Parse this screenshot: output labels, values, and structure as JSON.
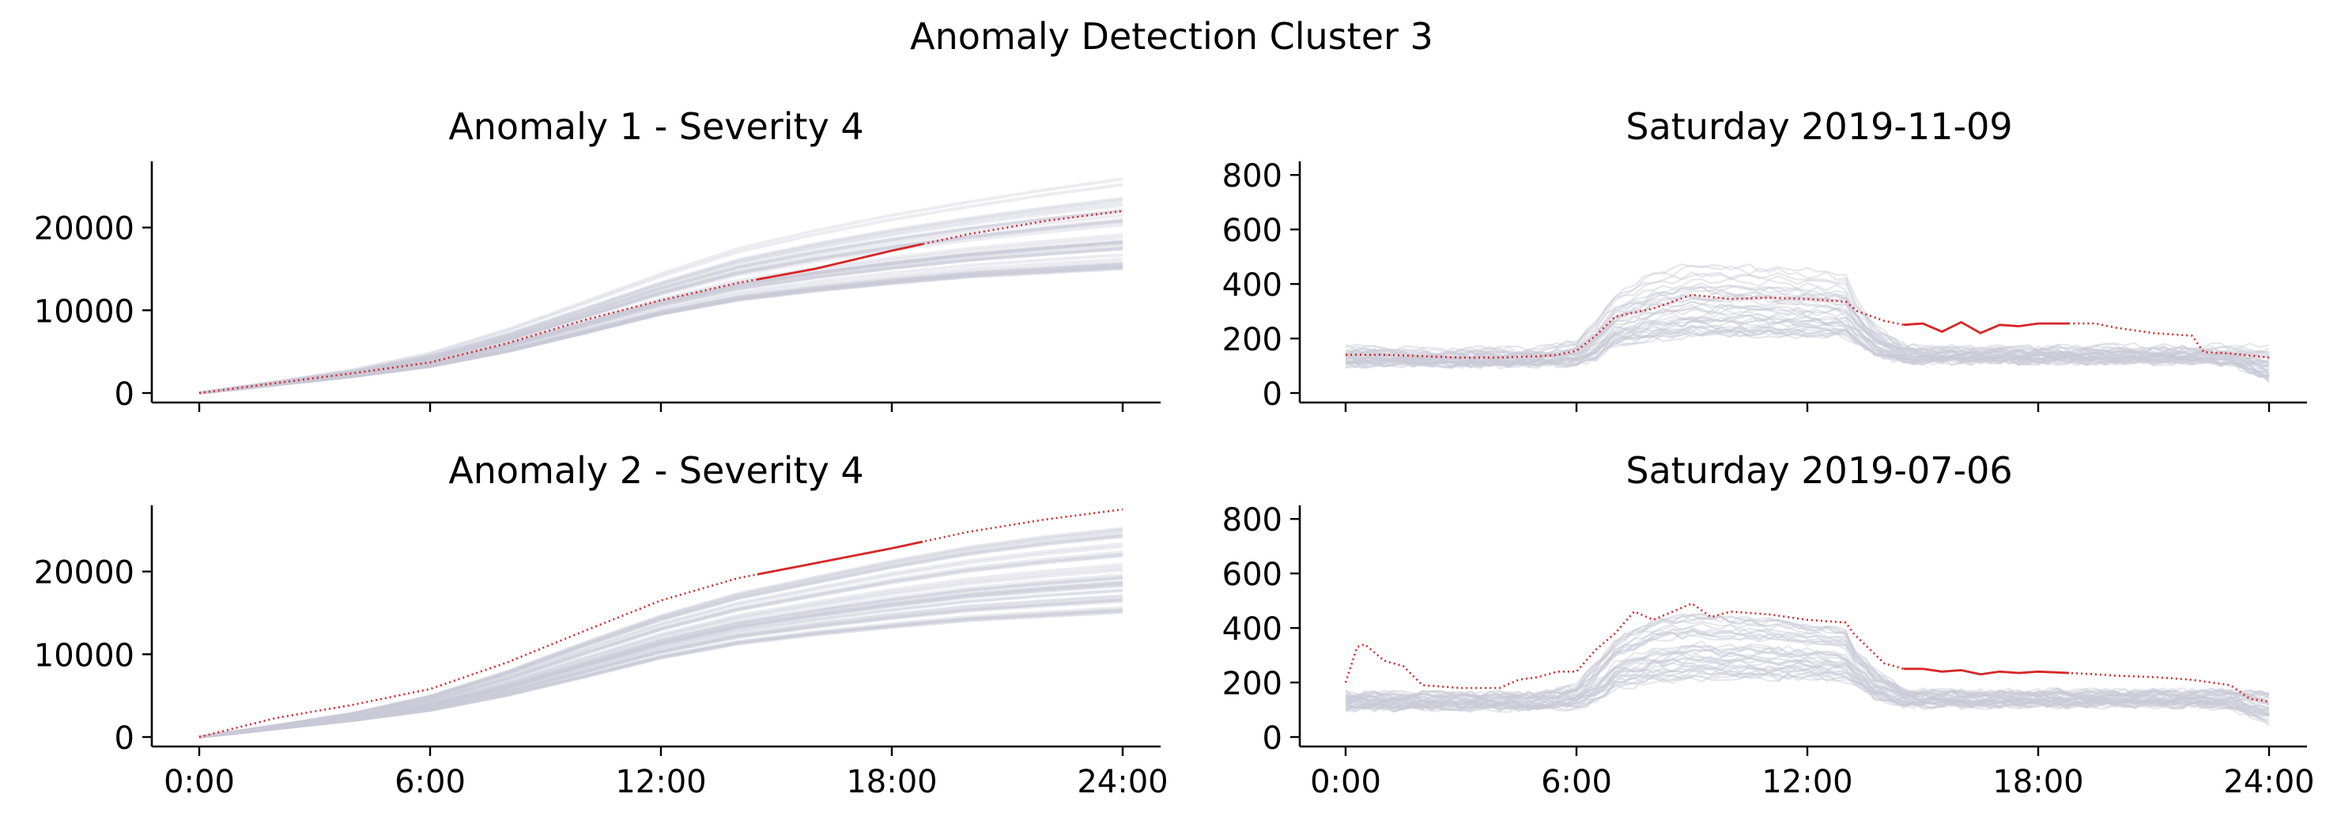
{
  "figure": {
    "suptitle": "Anomaly Detection Cluster 3"
  },
  "colors": {
    "background": "#ffffff",
    "background_lines": "#c9c9d6",
    "anomaly": "#d62728",
    "axes": "#000000"
  },
  "chart_data": [
    {
      "type": "line",
      "title": "Anomaly 1 - Severity 4",
      "xlabel": "",
      "ylabel": "",
      "xlim": [
        0,
        24
      ],
      "ylim": [
        0,
        28000
      ],
      "xticks": [
        "0:00",
        "6:00",
        "12:00",
        "18:00",
        "24:00"
      ],
      "yticks": [
        0,
        10000,
        20000
      ],
      "grid": false,
      "legend": "none",
      "background_series": {
        "count": 40,
        "x": [
          0,
          2,
          4,
          6,
          8,
          10,
          12,
          14,
          16,
          18,
          20,
          22,
          24
        ],
        "low": [
          0,
          1000,
          2000,
          3200,
          5000,
          7200,
          9500,
          11200,
          12300,
          13200,
          14000,
          14500,
          15000
        ],
        "high": [
          0,
          1400,
          2900,
          5000,
          8000,
          11500,
          15000,
          18200,
          20500,
          22500,
          24200,
          25800,
          27200
        ]
      },
      "anomaly_series": {
        "x": [
          0,
          2,
          4,
          6,
          8,
          10,
          12,
          14,
          16,
          18,
          20,
          22,
          24
        ],
        "y": [
          0,
          1200,
          2400,
          3700,
          6000,
          8800,
          11200,
          13300,
          15000,
          17200,
          19200,
          20800,
          22000
        ],
        "highlight_range": [
          14.5,
          18.8
        ]
      }
    },
    {
      "type": "line",
      "title": "Saturday 2019-11-09",
      "xlabel": "",
      "ylabel": "",
      "xlim": [
        0,
        24
      ],
      "ylim": [
        0,
        850
      ],
      "xticks": [
        "0:00",
        "6:00",
        "12:00",
        "18:00",
        "24:00"
      ],
      "yticks": [
        0,
        200,
        400,
        600,
        800
      ],
      "grid": false,
      "legend": "none",
      "background_series": {
        "count": 40,
        "x": [
          0,
          1,
          2,
          3,
          4,
          5,
          6,
          6.5,
          7,
          8,
          9,
          10,
          11,
          12,
          13,
          13.2,
          13.8,
          14.5,
          15,
          16,
          17,
          18,
          19,
          20,
          21,
          22,
          23,
          24
        ],
        "low": [
          105,
          105,
          105,
          105,
          105,
          105,
          110,
          130,
          180,
          200,
          215,
          215,
          215,
          215,
          210,
          195,
          140,
          115,
          115,
          115,
          115,
          115,
          115,
          115,
          115,
          115,
          110,
          50
        ],
        "high": [
          170,
          170,
          160,
          160,
          160,
          160,
          190,
          270,
          360,
          440,
          470,
          470,
          460,
          450,
          440,
          360,
          240,
          180,
          170,
          170,
          170,
          170,
          170,
          170,
          170,
          170,
          170,
          170
        ]
      },
      "anomaly_series": {
        "x": [
          0,
          1,
          2,
          3,
          4,
          5,
          5.5,
          6,
          6.5,
          7,
          8,
          9,
          10,
          11,
          12,
          13,
          13.3,
          14,
          14.5,
          15,
          15.5,
          16,
          16.5,
          17,
          17.5,
          18,
          18.8,
          19.5,
          20,
          21,
          22,
          22.3,
          23,
          24
        ],
        "y": [
          140,
          140,
          135,
          130,
          130,
          135,
          140,
          155,
          210,
          280,
          310,
          360,
          345,
          350,
          345,
          335,
          300,
          265,
          250,
          255,
          225,
          260,
          220,
          250,
          245,
          255,
          255,
          255,
          240,
          220,
          210,
          150,
          145,
          130
        ],
        "highlight_range": [
          14.5,
          18.8
        ]
      }
    },
    {
      "type": "line",
      "title": "Anomaly 2 - Severity 4",
      "xlabel": "",
      "ylabel": "",
      "xlim": [
        0,
        24
      ],
      "ylim": [
        0,
        28000
      ],
      "xticks": [
        "0:00",
        "6:00",
        "12:00",
        "18:00",
        "24:00"
      ],
      "yticks": [
        0,
        10000,
        20000
      ],
      "grid": false,
      "legend": "none",
      "background_series": {
        "count": 40,
        "x": [
          0,
          2,
          4,
          6,
          8,
          10,
          12,
          14,
          16,
          18,
          20,
          22,
          24
        ],
        "low": [
          0,
          1000,
          2000,
          3200,
          5000,
          7200,
          9500,
          11200,
          12300,
          13200,
          14000,
          14500,
          15000
        ],
        "high": [
          0,
          1400,
          2900,
          5000,
          8000,
          11500,
          14800,
          17500,
          19500,
          21500,
          23200,
          24500,
          25500
        ]
      },
      "anomaly_series": {
        "x": [
          0,
          2,
          4,
          6,
          8,
          10,
          12,
          14,
          16,
          18,
          20,
          22,
          24
        ],
        "y": [
          0,
          2300,
          3900,
          5800,
          9000,
          12800,
          16500,
          19200,
          21000,
          22800,
          24800,
          26300,
          27500
        ],
        "highlight_range": [
          14.5,
          18.8
        ]
      }
    },
    {
      "type": "line",
      "title": "Saturday 2019-07-06",
      "xlabel": "",
      "ylabel": "",
      "xlim": [
        0,
        24
      ],
      "ylim": [
        0,
        850
      ],
      "xticks": [
        "0:00",
        "6:00",
        "12:00",
        "18:00",
        "24:00"
      ],
      "yticks": [
        0,
        200,
        400,
        600,
        800
      ],
      "grid": false,
      "legend": "none",
      "background_series": {
        "count": 40,
        "x": [
          0,
          1,
          2,
          3,
          4,
          5,
          6,
          6.5,
          7,
          8,
          9,
          10,
          11,
          12,
          13,
          13.2,
          13.8,
          14.5,
          15,
          16,
          17,
          18,
          19,
          20,
          21,
          22,
          23,
          24
        ],
        "low": [
          105,
          105,
          105,
          105,
          105,
          105,
          110,
          130,
          180,
          200,
          215,
          215,
          215,
          215,
          210,
          195,
          140,
          115,
          115,
          115,
          115,
          115,
          115,
          115,
          115,
          115,
          110,
          50
        ],
        "high": [
          160,
          160,
          160,
          160,
          160,
          160,
          190,
          270,
          360,
          440,
          460,
          450,
          440,
          420,
          400,
          330,
          240,
          180,
          170,
          170,
          170,
          170,
          170,
          170,
          170,
          170,
          170,
          170
        ]
      },
      "anomaly_series": {
        "x": [
          0,
          0.3,
          0.5,
          1,
          1.5,
          2,
          3,
          4,
          4.5,
          5,
          5.5,
          6,
          6.5,
          7,
          7.5,
          8,
          8.5,
          9,
          9.5,
          10,
          11,
          12,
          13,
          13.2,
          14,
          14.5,
          15,
          15.5,
          16,
          16.5,
          17,
          17.5,
          18,
          18.8,
          19.5,
          20,
          21,
          22,
          23,
          23.5,
          24
        ],
        "y": [
          200,
          330,
          340,
          280,
          260,
          190,
          180,
          180,
          210,
          220,
          240,
          240,
          320,
          380,
          460,
          430,
          460,
          490,
          440,
          460,
          450,
          430,
          420,
          380,
          270,
          250,
          250,
          240,
          245,
          230,
          240,
          235,
          240,
          235,
          230,
          225,
          220,
          210,
          190,
          140,
          130
        ],
        "highlight_range": [
          14.5,
          18.8
        ]
      }
    }
  ]
}
